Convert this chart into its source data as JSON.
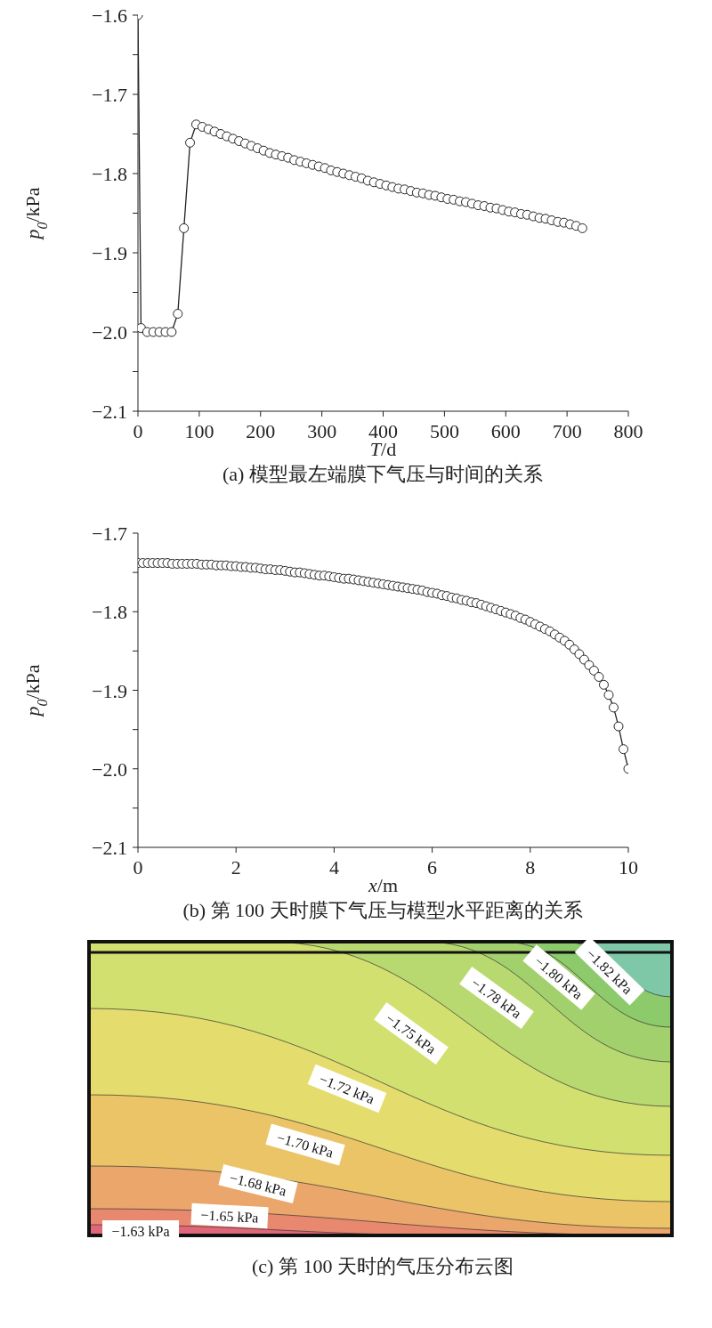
{
  "chart_data": [
    {
      "type": "line",
      "title": "(a) 模型最左端膜下气压与时间的关系",
      "xlabel": "T/d",
      "ylabel": "p$_{0}$/kPa",
      "marker": "circle",
      "line_style": "solid",
      "xlim": [
        0,
        800
      ],
      "xticks": [
        0,
        100,
        200,
        300,
        400,
        500,
        600,
        700,
        800
      ],
      "ylim": [
        -2.1,
        -1.6
      ],
      "yticks": [
        {
          "value": -2.1,
          "label": "−2.1"
        },
        {
          "value": -2.05,
          "label": null
        },
        {
          "value": -2.0,
          "label": "−2.0"
        },
        {
          "value": -1.95,
          "label": null
        },
        {
          "value": -1.9,
          "label": "−1.9"
        },
        {
          "value": -1.85,
          "label": null
        },
        {
          "value": -1.8,
          "label": "−1.8"
        },
        {
          "value": -1.75,
          "label": null
        },
        {
          "value": -1.7,
          "label": "−1.7"
        },
        {
          "value": -1.65,
          "label": null
        },
        {
          "value": -1.6,
          "label": "−1.6"
        }
      ],
      "x": [
        0,
        5,
        15,
        25,
        35,
        45,
        55,
        65,
        75,
        85,
        95,
        105,
        115,
        125,
        135,
        145,
        155,
        165,
        175,
        185,
        195,
        205,
        215,
        225,
        235,
        245,
        255,
        265,
        275,
        285,
        295,
        305,
        315,
        325,
        335,
        345,
        355,
        365,
        375,
        385,
        395,
        405,
        415,
        425,
        435,
        445,
        455,
        465,
        475,
        485,
        495,
        505,
        515,
        525,
        535,
        545,
        555,
        565,
        575,
        585,
        595,
        605,
        615,
        625,
        635,
        645,
        655,
        665,
        675,
        685,
        695,
        705,
        715,
        725
      ],
      "series": [
        {
          "color": "#222222",
          "values": [
            -1.6,
            -1.995,
            -2.0,
            -2.0,
            -2.0,
            -2.0,
            -2.0,
            -1.977,
            -1.869,
            -1.761,
            -1.738,
            -1.741,
            -1.744,
            -1.747,
            -1.75,
            -1.753,
            -1.756,
            -1.759,
            -1.762,
            -1.765,
            -1.768,
            -1.771,
            -1.774,
            -1.776,
            -1.778,
            -1.78,
            -1.783,
            -1.785,
            -1.787,
            -1.789,
            -1.791,
            -1.793,
            -1.796,
            -1.798,
            -1.8,
            -1.802,
            -1.804,
            -1.806,
            -1.809,
            -1.811,
            -1.813,
            -1.815,
            -1.817,
            -1.819,
            -1.82,
            -1.822,
            -1.824,
            -1.825,
            -1.827,
            -1.828,
            -1.83,
            -1.832,
            -1.833,
            -1.835,
            -1.836,
            -1.838,
            -1.84,
            -1.841,
            -1.843,
            -1.844,
            -1.846,
            -1.848,
            -1.849,
            -1.851,
            -1.852,
            -1.854,
            -1.856,
            -1.857,
            -1.859,
            -1.861,
            -1.862,
            -1.864,
            -1.866,
            -1.869
          ]
        }
      ]
    },
    {
      "type": "line",
      "title": "(b) 第 100 天时膜下气压与模型水平距离的关系",
      "xlabel": "x/m",
      "ylabel": "p$_{0}$/kPa",
      "marker": "circle",
      "line_style": "solid",
      "xlim": [
        0,
        10
      ],
      "xticks": [
        0,
        2,
        4,
        6,
        8,
        10
      ],
      "ylim": [
        -2.1,
        -1.7
      ],
      "yticks": [
        {
          "value": -2.1,
          "label": "−2.1"
        },
        {
          "value": -2.05,
          "label": null
        },
        {
          "value": -2.0,
          "label": "−2.0"
        },
        {
          "value": -1.95,
          "label": null
        },
        {
          "value": -1.9,
          "label": "−1.9"
        },
        {
          "value": -1.85,
          "label": null
        },
        {
          "value": -1.8,
          "label": "−1.8"
        },
        {
          "value": -1.75,
          "label": null
        },
        {
          "value": -1.7,
          "label": "−1.7"
        }
      ],
      "x": [
        0,
        0.1,
        0.2,
        0.3,
        0.4,
        0.5,
        0.6,
        0.7,
        0.8,
        0.9,
        1,
        1.1,
        1.2,
        1.3,
        1.4,
        1.5,
        1.6,
        1.7,
        1.8,
        1.9,
        2,
        2.1,
        2.2,
        2.3,
        2.4,
        2.5,
        2.6,
        2.7,
        2.8,
        2.9,
        3,
        3.1,
        3.2,
        3.3,
        3.4,
        3.5,
        3.6,
        3.7,
        3.8,
        3.9,
        4,
        4.1,
        4.2,
        4.3,
        4.4,
        4.5,
        4.6,
        4.7,
        4.8,
        4.9,
        5,
        5.1,
        5.2,
        5.3,
        5.4,
        5.5,
        5.6,
        5.7,
        5.8,
        5.9,
        6,
        6.1,
        6.2,
        6.3,
        6.4,
        6.5,
        6.6,
        6.7,
        6.8,
        6.9,
        7,
        7.1,
        7.2,
        7.3,
        7.4,
        7.5,
        7.6,
        7.7,
        7.8,
        7.9,
        8,
        8.1,
        8.2,
        8.3,
        8.4,
        8.5,
        8.6,
        8.7,
        8.8,
        8.9,
        9,
        9.1,
        9.2,
        9.3,
        9.4,
        9.5,
        9.6,
        9.7,
        9.8,
        9.9,
        10
      ],
      "series": [
        {
          "color": "#222222",
          "values": [
            -1.738,
            -1.738,
            -1.738,
            -1.738,
            -1.738,
            -1.738,
            -1.738,
            -1.739,
            -1.739,
            -1.739,
            -1.739,
            -1.739,
            -1.739,
            -1.74,
            -1.74,
            -1.74,
            -1.741,
            -1.741,
            -1.741,
            -1.742,
            -1.742,
            -1.743,
            -1.743,
            -1.744,
            -1.744,
            -1.745,
            -1.746,
            -1.746,
            -1.747,
            -1.747,
            -1.748,
            -1.749,
            -1.75,
            -1.75,
            -1.751,
            -1.752,
            -1.753,
            -1.754,
            -1.754,
            -1.755,
            -1.756,
            -1.757,
            -1.758,
            -1.758,
            -1.759,
            -1.76,
            -1.761,
            -1.762,
            -1.763,
            -1.764,
            -1.765,
            -1.766,
            -1.767,
            -1.768,
            -1.769,
            -1.77,
            -1.771,
            -1.772,
            -1.773,
            -1.775,
            -1.776,
            -1.777,
            -1.779,
            -1.78,
            -1.782,
            -1.783,
            -1.785,
            -1.786,
            -1.788,
            -1.789,
            -1.791,
            -1.793,
            -1.795,
            -1.797,
            -1.799,
            -1.801,
            -1.803,
            -1.805,
            -1.808,
            -1.81,
            -1.813,
            -1.816,
            -1.819,
            -1.822,
            -1.825,
            -1.829,
            -1.833,
            -1.837,
            -1.842,
            -1.848,
            -1.854,
            -1.861,
            -1.868,
            -1.875,
            -1.883,
            -1.893,
            -1.906,
            -1.922,
            -1.946,
            -1.975,
            -2.0
          ]
        }
      ]
    },
    {
      "type": "other",
      "title": "(c) 第 100 天时的气压分布云图",
      "annotations": [
        "−1.63 kPa",
        "−1.65 kPa",
        "−1.68 kPa",
        "−1.70 kPa",
        "−1.72 kPa",
        "−1.75 kPa",
        "−1.78 kPa",
        "−1.80 kPa",
        "−1.82 kPa"
      ]
    }
  ]
}
